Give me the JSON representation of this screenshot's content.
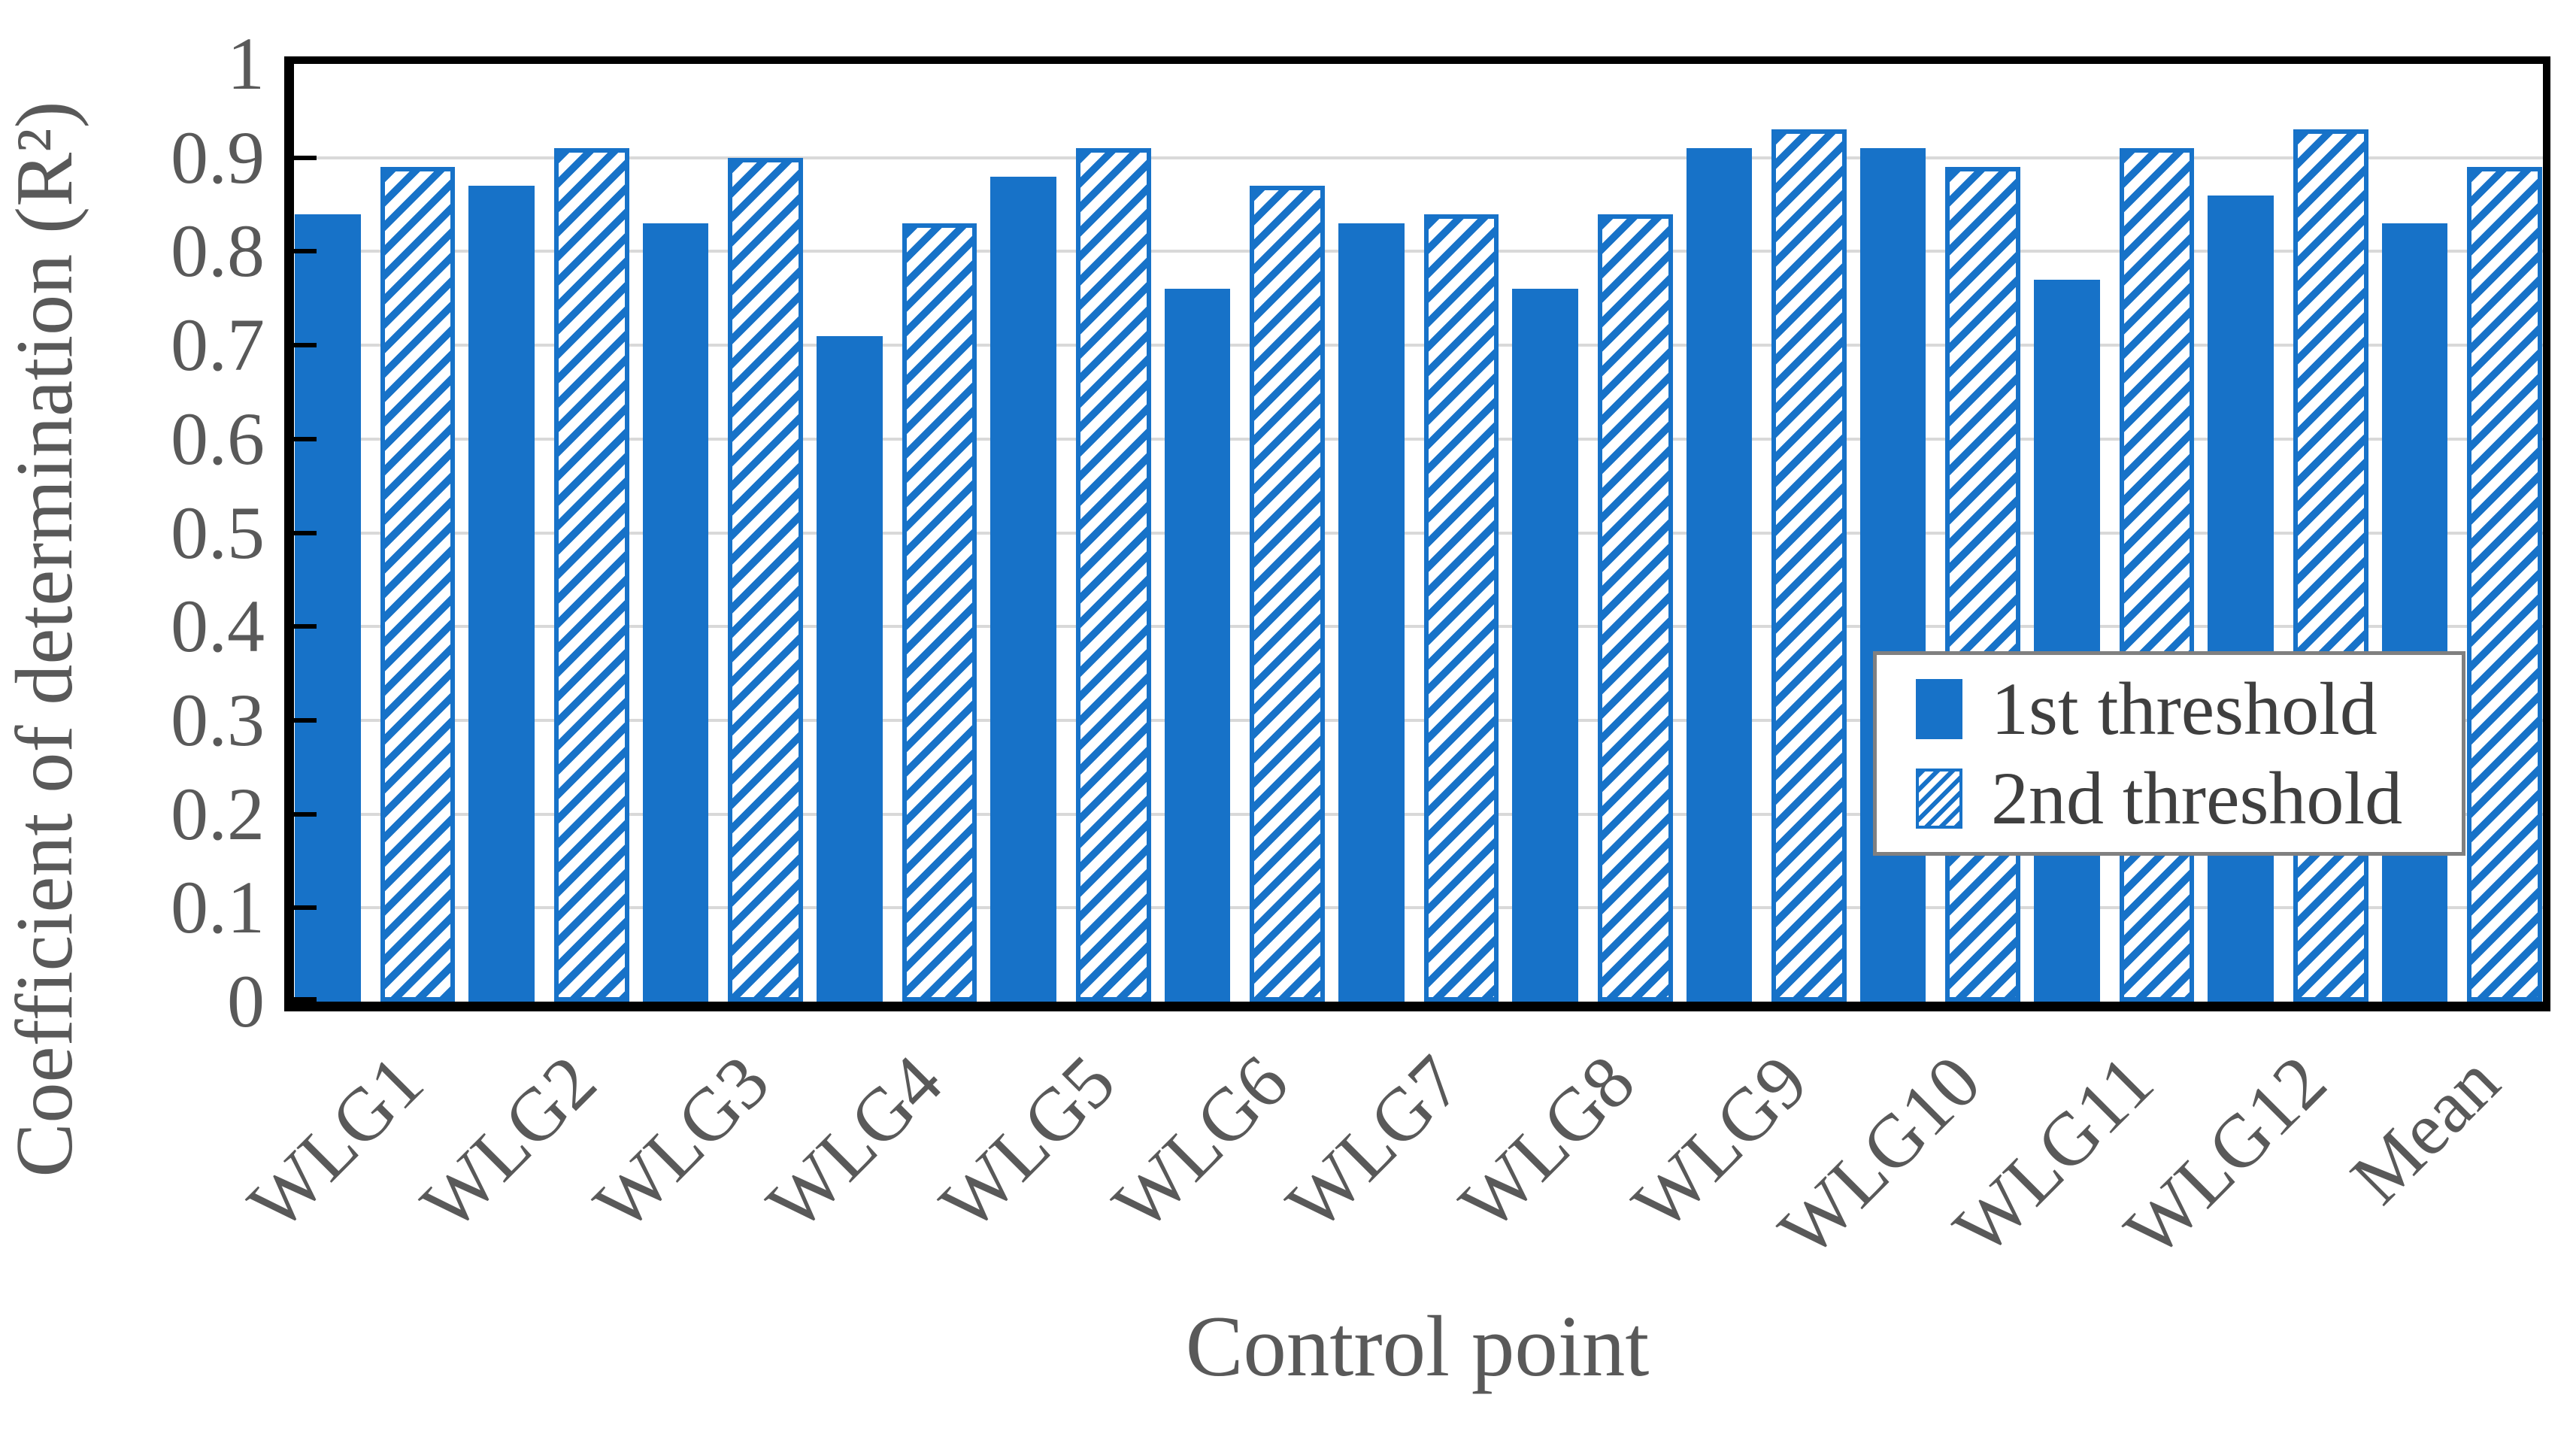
{
  "chart_data": {
    "type": "bar",
    "title": "",
    "xlabel": "Control point",
    "ylabel": "Coefficient of determination (R²)",
    "categories": [
      "WLG1",
      "WLG2",
      "WLG3",
      "WLG4",
      "WLG5",
      "WLG6",
      "WLG7",
      "WLG8",
      "WLG9",
      "WLG10",
      "WLG11",
      "WLG12",
      "Mean"
    ],
    "series": [
      {
        "name": "1st threshold",
        "pattern": "solid",
        "values": [
          0.84,
          0.87,
          0.83,
          0.71,
          0.88,
          0.76,
          0.83,
          0.76,
          0.91,
          0.91,
          0.77,
          0.86,
          0.83
        ]
      },
      {
        "name": "2nd threshold",
        "pattern": "hatched",
        "values": [
          0.89,
          0.91,
          0.9,
          0.83,
          0.91,
          0.87,
          0.84,
          0.84,
          0.93,
          0.89,
          0.91,
          0.93,
          0.89
        ]
      }
    ],
    "ylim": [
      0,
      1
    ],
    "yticks": [
      0,
      0.1,
      0.2,
      0.3,
      0.4,
      0.5,
      0.6,
      0.7,
      0.8,
      0.9,
      1
    ],
    "ytick_labels": [
      "0",
      "0.1",
      "0.2",
      "0.3",
      "0.4",
      "0.5",
      "0.6",
      "0.7",
      "0.8",
      "0.9",
      "1"
    ],
    "grid": "horizontal-major",
    "legend_position": "inside-lower-right"
  },
  "colors": {
    "background": "#FFFFFF",
    "bar_fill": "#1772C8",
    "grid": "#D9D9D9",
    "axis": "#000000",
    "tick_text": "#595959",
    "axis_title_text": "#595959",
    "legend_text": "#3F3F3F",
    "legend_border": "#808080"
  }
}
